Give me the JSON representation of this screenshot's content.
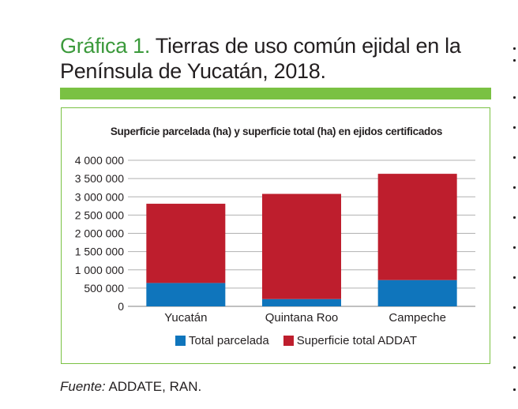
{
  "heading": {
    "label": "Gráfica 1.",
    "text": " Tierras de uso común ejidal en la Península de Yucatán, 2018."
  },
  "source": {
    "label": "Fuente:",
    "text": " ADDATE, RAN."
  },
  "colors": {
    "accent_green": "#7ac143",
    "heading_green": "#3c9a3c",
    "parcelada": "#0f75bc",
    "total": "#be1e2d"
  },
  "chart_data": {
    "type": "bar",
    "stacked": true,
    "title": "Superficie parcelada (ha) y superficie total (ha) en ejidos certificados",
    "xlabel": "",
    "ylabel": "",
    "categories": [
      "Yucatán",
      "Quintana Roo",
      "Campeche"
    ],
    "series": [
      {
        "name": "Total parcelada",
        "values": [
          640000,
          200000,
          720000
        ],
        "color": "#0f75bc"
      },
      {
        "name": "Superficie total ADDAT",
        "values": [
          2170000,
          2880000,
          2910000
        ],
        "color": "#be1e2d"
      }
    ],
    "ylim": [
      0,
      4000000
    ],
    "yticks": [
      0,
      500000,
      1000000,
      1500000,
      2000000,
      2500000,
      3000000,
      3500000,
      4000000
    ],
    "ytick_labels": [
      "0",
      "500 000",
      "1 000 000",
      "1 500 000",
      "2 000 000",
      "2 500 000",
      "3 000 000",
      "3 500 000",
      "4 000 000"
    ],
    "grid": true,
    "legend_position": "bottom"
  }
}
